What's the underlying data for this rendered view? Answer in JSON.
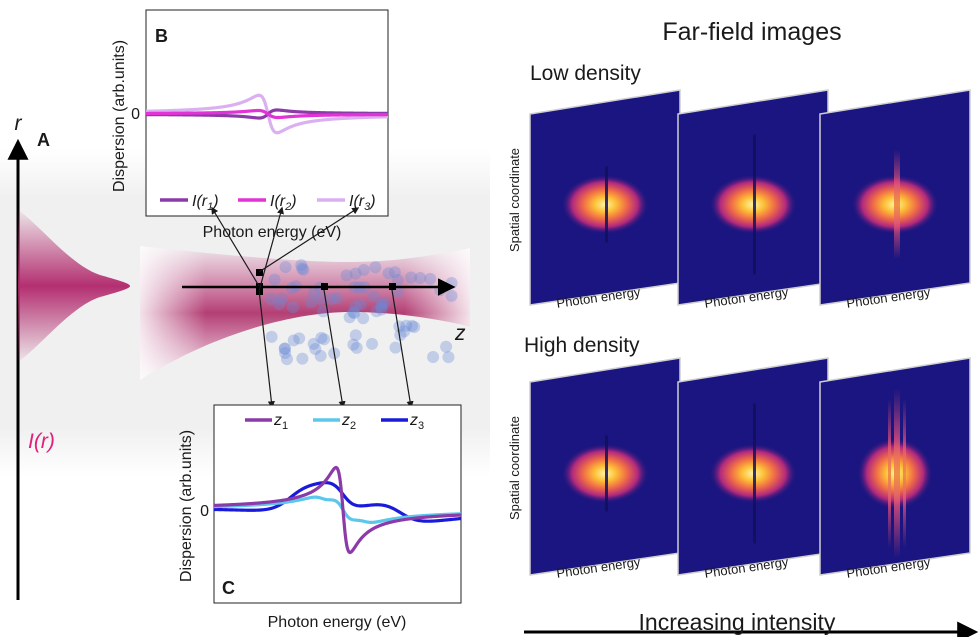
{
  "title_far_field": "Far-field images",
  "row_low": "Low density",
  "row_high": "High density",
  "axis_spatial": "Spatial coordinate",
  "axis_photon_energy": "Photon energy",
  "bottom_label": "Increasing intensity",
  "panel_a": {
    "letter": "A",
    "axis_r": "r",
    "intensity_label": "I(r)",
    "axis_z": "z"
  },
  "panel_b": {
    "letter": "B",
    "ylabel": "Dispersion (arb.units)",
    "xlabel": "Photon energy (eV)",
    "zero_tick": "0",
    "legend": [
      "I(r1)",
      "I(r2)",
      "I(r3)"
    ],
    "series_colors": [
      "#8b3aa8",
      "#e233d6",
      "#dbb0f0"
    ]
  },
  "panel_c": {
    "letter": "C",
    "ylabel": "Dispersion (arb.units)",
    "xlabel": "Photon energy (eV)",
    "zero_tick": "0",
    "legend": [
      "z1",
      "z2",
      "z3"
    ],
    "series_colors": [
      "#8b3aa8",
      "#5bc7ec",
      "#1a1adb"
    ]
  },
  "colors": {
    "beam": "#b0256a",
    "intensity": "#e0207a",
    "plot_bg": "#1a1580"
  }
}
